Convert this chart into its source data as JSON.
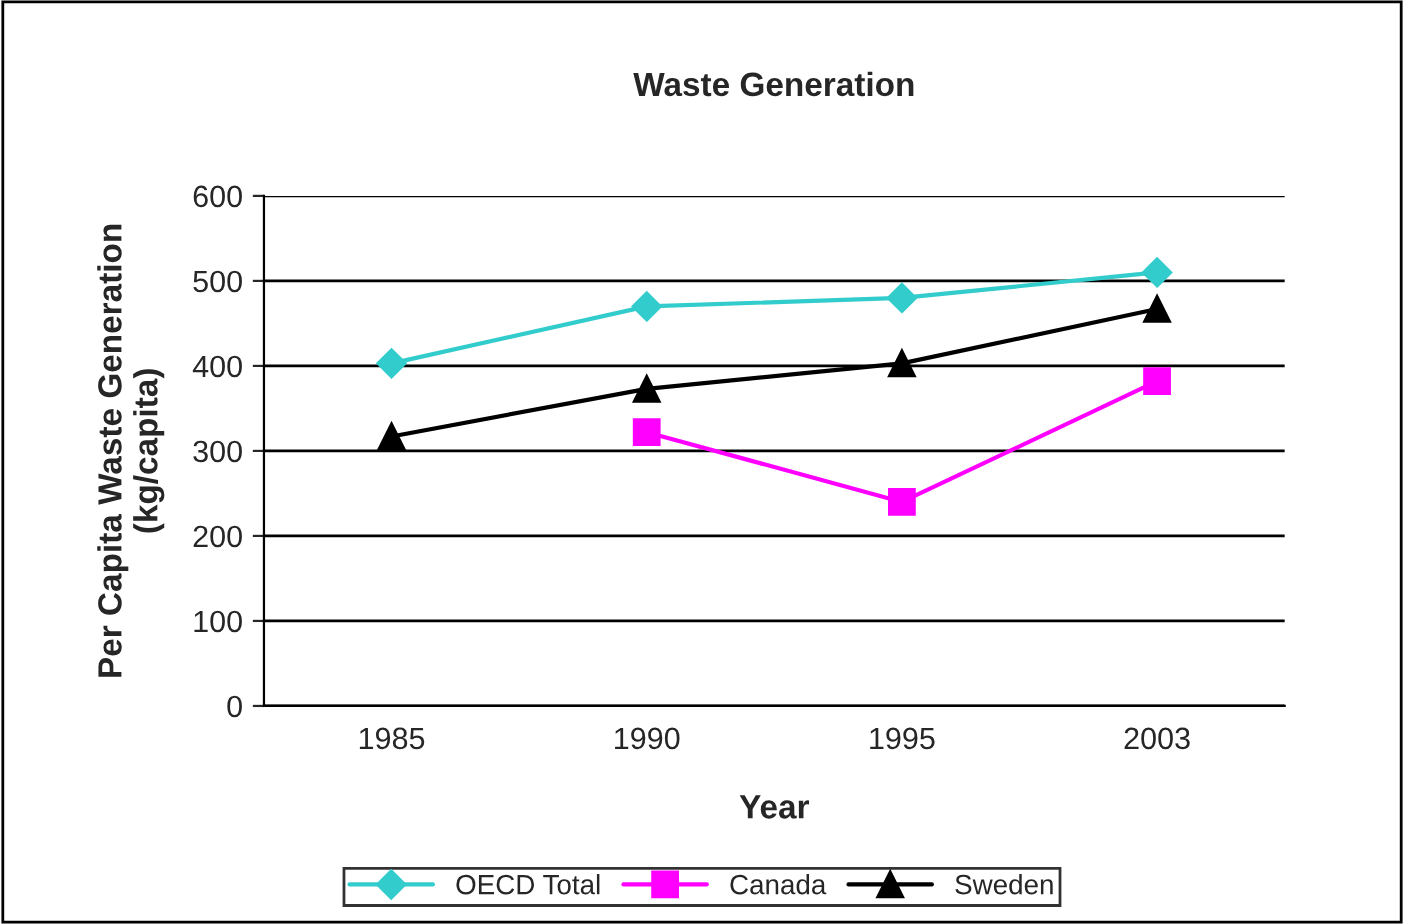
{
  "chart_data": {
    "type": "line",
    "title": "Waste Generation",
    "xlabel": "Year",
    "ylabel": "Per Capita Waste Generation\n(kg/capita)",
    "categories": [
      "1985",
      "1990",
      "1995",
      "2003"
    ],
    "series": [
      {
        "name": "OECD Total",
        "color": "#33cccc",
        "marker": "diamond",
        "values": [
          403,
          470,
          480,
          510
        ]
      },
      {
        "name": "Canada",
        "color": "#ff00ff",
        "marker": "square",
        "values": [
          null,
          322,
          240,
          382
        ]
      },
      {
        "name": "Sweden",
        "color": "#000000",
        "marker": "triangle",
        "values": [
          317,
          373,
          403,
          467
        ]
      }
    ],
    "ylim": [
      0,
      600
    ],
    "yticks": [
      0,
      100,
      200,
      300,
      400,
      500,
      600
    ],
    "grid": "y",
    "legend": "bottom"
  }
}
